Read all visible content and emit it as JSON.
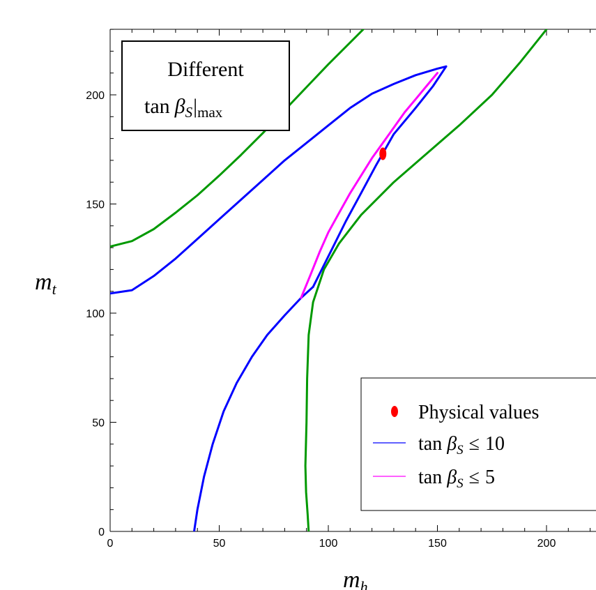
{
  "chart_data": {
    "type": "line",
    "title": "",
    "xlabel": "m",
    "xlabel_sub": "h",
    "ylabel": "m",
    "ylabel_sub": "t",
    "xlim": [
      0,
      222
    ],
    "ylim": [
      0,
      230
    ],
    "x_ticks": [
      0,
      50,
      100,
      150,
      200
    ],
    "y_ticks": [
      0,
      50,
      100,
      150,
      200
    ],
    "grid": false,
    "annotation": {
      "line1": "Different",
      "line2_pre": "tan",
      "line2_beta": "β",
      "line2_sub": "S",
      "line2_bar": "|",
      "line2_max": "max"
    },
    "legend": {
      "position": "bottom-right",
      "entries": [
        {
          "label": "Physical values",
          "color": "#ff0000",
          "marker": "ellipse"
        },
        {
          "pre": "tan",
          "beta": "β",
          "sub": "S",
          "rel": "≤",
          "val": "10",
          "color": "#0000ff"
        },
        {
          "pre": "tan",
          "beta": "β",
          "sub": "S",
          "rel": "≤",
          "val": "5",
          "color": "#ff00ff"
        }
      ]
    },
    "series": [
      {
        "color": "#009900",
        "points": [
          [
            0,
            130.5
          ],
          [
            10,
            133
          ],
          [
            20,
            138.5
          ],
          [
            30,
            146
          ],
          [
            40,
            154
          ],
          [
            50,
            163
          ],
          [
            60,
            172.5
          ],
          [
            70,
            182.5
          ],
          [
            80,
            193
          ],
          [
            90,
            203.5
          ],
          [
            100,
            214
          ],
          [
            110,
            224
          ],
          [
            117,
            231
          ]
        ]
      },
      {
        "color": "#009900",
        "points": [
          [
            91,
            0
          ],
          [
            90.5,
            8
          ],
          [
            89.8,
            18
          ],
          [
            89.5,
            30
          ],
          [
            90,
            50
          ],
          [
            90.3,
            70
          ],
          [
            91,
            90
          ],
          [
            93,
            105
          ],
          [
            98,
            120
          ],
          [
            105,
            132
          ],
          [
            115,
            145
          ],
          [
            130,
            160
          ],
          [
            145,
            173
          ],
          [
            160,
            186
          ],
          [
            175,
            200
          ],
          [
            188,
            215
          ],
          [
            200,
            230
          ]
        ]
      },
      {
        "color": "#0000ff",
        "points": [
          [
            0,
            109
          ],
          [
            10,
            110.5
          ],
          [
            20,
            117
          ],
          [
            30,
            125
          ],
          [
            40,
            134
          ],
          [
            50,
            143
          ],
          [
            60,
            152
          ],
          [
            70,
            161
          ],
          [
            80,
            170
          ],
          [
            90,
            178
          ],
          [
            100,
            186
          ],
          [
            110,
            194
          ],
          [
            120,
            200.5
          ],
          [
            130,
            205
          ],
          [
            140,
            209
          ],
          [
            150,
            212
          ],
          [
            154,
            213
          ]
        ]
      },
      {
        "color": "#0000ff",
        "points": [
          [
            154,
            213
          ],
          [
            148,
            204
          ],
          [
            140,
            194
          ],
          [
            130,
            182
          ],
          [
            122,
            168
          ],
          [
            115,
            155
          ],
          [
            108,
            142
          ],
          [
            102,
            130
          ],
          [
            97,
            120
          ],
          [
            93,
            112
          ]
        ]
      },
      {
        "color": "#0000ff",
        "points": [
          [
            93,
            112
          ],
          [
            87.5,
            107
          ]
        ]
      },
      {
        "color": "#0000ff",
        "points": [
          [
            87.5,
            107
          ],
          [
            80,
            99
          ],
          [
            72,
            90
          ],
          [
            65,
            80
          ],
          [
            58,
            68
          ],
          [
            52,
            55
          ],
          [
            47,
            40
          ],
          [
            43,
            25
          ],
          [
            40,
            10
          ],
          [
            38.5,
            0
          ]
        ]
      },
      {
        "color": "#ff00ff",
        "points": [
          [
            87.5,
            107
          ],
          [
            92,
            118
          ],
          [
            96,
            128
          ],
          [
            100,
            137
          ],
          [
            105,
            146
          ],
          [
            110,
            155
          ],
          [
            115,
            163
          ],
          [
            120,
            171
          ],
          [
            125,
            178
          ],
          [
            130,
            185
          ],
          [
            135,
            192
          ],
          [
            140,
            198
          ],
          [
            145,
            204
          ],
          [
            150,
            210
          ]
        ]
      }
    ],
    "points": [
      {
        "color": "#ff0000",
        "x": 125,
        "y": 173
      }
    ]
  }
}
